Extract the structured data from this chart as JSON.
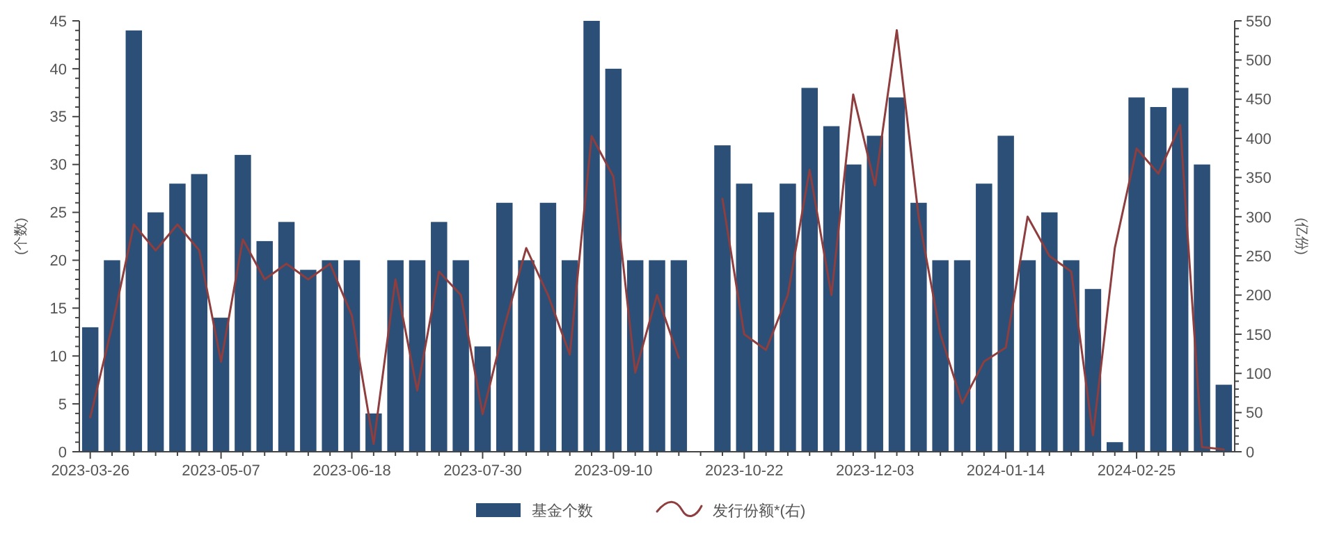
{
  "chart_data": {
    "type": "bar",
    "categories": [
      "2023-03-26",
      null,
      null,
      null,
      null,
      null,
      "2023-05-07",
      null,
      null,
      null,
      null,
      null,
      "2023-06-18",
      null,
      null,
      null,
      null,
      null,
      "2023-07-30",
      null,
      null,
      null,
      null,
      null,
      "2023-09-10",
      null,
      null,
      null,
      null,
      null,
      "2023-10-22",
      null,
      null,
      null,
      null,
      null,
      "2023-12-03",
      null,
      null,
      null,
      null,
      null,
      "2024-01-14",
      null,
      null,
      null,
      null,
      null,
      "2024-02-25",
      null,
      null,
      null,
      null
    ],
    "series": [
      {
        "name": "基金个数",
        "color": "#2c4f77",
        "values": [
          13,
          20,
          44,
          25,
          28,
          29,
          14,
          31,
          22,
          24,
          19,
          20,
          20,
          4,
          20,
          20,
          24,
          20,
          11,
          26,
          20,
          26,
          20,
          45,
          40,
          20,
          20,
          20,
          null,
          32,
          28,
          25,
          28,
          38,
          34,
          30,
          33,
          37,
          26,
          20,
          20,
          28,
          33,
          20,
          25,
          20,
          17,
          1,
          37,
          36,
          38,
          30,
          7
        ]
      },
      {
        "name": "发行份额*(右)",
        "type": "line",
        "axis": "y2",
        "color": "#8e3e3e",
        "values": [
          44,
          160,
          290,
          257,
          290,
          257,
          115,
          271,
          220,
          240,
          220,
          240,
          174,
          10,
          220,
          78,
          230,
          200,
          48,
          160,
          260,
          200,
          124,
          403,
          351,
          101,
          200,
          120,
          null,
          323,
          150,
          130,
          200,
          360,
          200,
          456,
          340,
          538,
          300,
          150,
          62,
          115,
          133,
          300,
          250,
          230,
          21,
          260,
          387,
          355,
          417,
          6,
          3
        ]
      }
    ],
    "ylabel": "(个数)",
    "y2label": "(亿份)",
    "ylim": [
      0,
      45
    ],
    "yticks": [
      0,
      {
        "value": 1,
        "label": null
      },
      {
        "value": 2,
        "label": null
      },
      {
        "value": 3,
        "label": null
      },
      {
        "value": 4,
        "label": null
      },
      5,
      {
        "value": 6,
        "label": null
      },
      {
        "value": 7,
        "label": null
      },
      {
        "value": 8,
        "label": null
      },
      {
        "value": 9,
        "label": null
      },
      10,
      {
        "value": 11,
        "label": null
      },
      {
        "value": 12,
        "label": null
      },
      {
        "value": 13,
        "label": null
      },
      {
        "value": 14,
        "label": null
      },
      15,
      {
        "value": 16,
        "label": null
      },
      {
        "value": 17,
        "label": null
      },
      {
        "value": 18,
        "label": null
      },
      {
        "value": 19,
        "label": null
      },
      20,
      {
        "value": 21,
        "label": null
      },
      {
        "value": 22,
        "label": null
      },
      {
        "value": 23,
        "label": null
      },
      {
        "value": 24,
        "label": null
      },
      25,
      {
        "value": 26,
        "label": null
      },
      {
        "value": 27,
        "label": null
      },
      {
        "value": 28,
        "label": null
      },
      {
        "value": 29,
        "label": null
      },
      30,
      {
        "value": 31,
        "label": null
      },
      {
        "value": 32,
        "label": null
      },
      {
        "value": 33,
        "label": null
      },
      {
        "value": 34,
        "label": null
      },
      35,
      {
        "value": 36,
        "label": null
      },
      {
        "value": 37,
        "label": null
      },
      {
        "value": 38,
        "label": null
      },
      {
        "value": 39,
        "label": null
      },
      40,
      {
        "value": 41,
        "label": null
      },
      {
        "value": 42,
        "label": null
      },
      {
        "value": 43,
        "label": null
      },
      {
        "value": 44,
        "label": null
      },
      45
    ],
    "y2lim": [
      0,
      550
    ],
    "y2ticks": [
      0,
      {
        "value": 10,
        "label": null
      },
      {
        "value": 20,
        "label": null
      },
      {
        "value": 30,
        "label": null
      },
      {
        "value": 40,
        "label": null
      },
      50,
      {
        "value": 60,
        "label": null
      },
      {
        "value": 70,
        "label": null
      },
      {
        "value": 80,
        "label": null
      },
      {
        "value": 90,
        "label": null
      },
      100,
      {
        "value": 110,
        "label": null
      },
      {
        "value": 120,
        "label": null
      },
      {
        "value": 130,
        "label": null
      },
      {
        "value": 140,
        "label": null
      },
      150,
      {
        "value": 160,
        "label": null
      },
      {
        "value": 170,
        "label": null
      },
      {
        "value": 180,
        "label": null
      },
      {
        "value": 190,
        "label": null
      },
      200,
      {
        "value": 210,
        "label": null
      },
      {
        "value": 220,
        "label": null
      },
      {
        "value": 230,
        "label": null
      },
      {
        "value": 240,
        "label": null
      },
      250,
      {
        "value": 260,
        "label": null
      },
      {
        "value": 270,
        "label": null
      },
      {
        "value": 280,
        "label": null
      },
      {
        "value": 290,
        "label": null
      },
      300,
      {
        "value": 310,
        "label": null
      },
      {
        "value": 320,
        "label": null
      },
      {
        "value": 330,
        "label": null
      },
      {
        "value": 340,
        "label": null
      },
      350,
      {
        "value": 360,
        "label": null
      },
      {
        "value": 370,
        "label": null
      },
      {
        "value": 380,
        "label": null
      },
      {
        "value": 390,
        "label": null
      },
      400,
      {
        "value": 410,
        "label": null
      },
      {
        "value": 420,
        "label": null
      },
      {
        "value": 430,
        "label": null
      },
      {
        "value": 440,
        "label": null
      },
      450,
      {
        "value": 460,
        "label": null
      },
      {
        "value": 470,
        "label": null
      },
      {
        "value": 480,
        "label": null
      },
      {
        "value": 490,
        "label": null
      },
      500,
      {
        "value": 510,
        "label": null
      },
      {
        "value": 520,
        "label": null
      },
      {
        "value": 530,
        "label": null
      },
      {
        "value": 540,
        "label": null
      },
      550
    ],
    "legend": "bottom"
  }
}
